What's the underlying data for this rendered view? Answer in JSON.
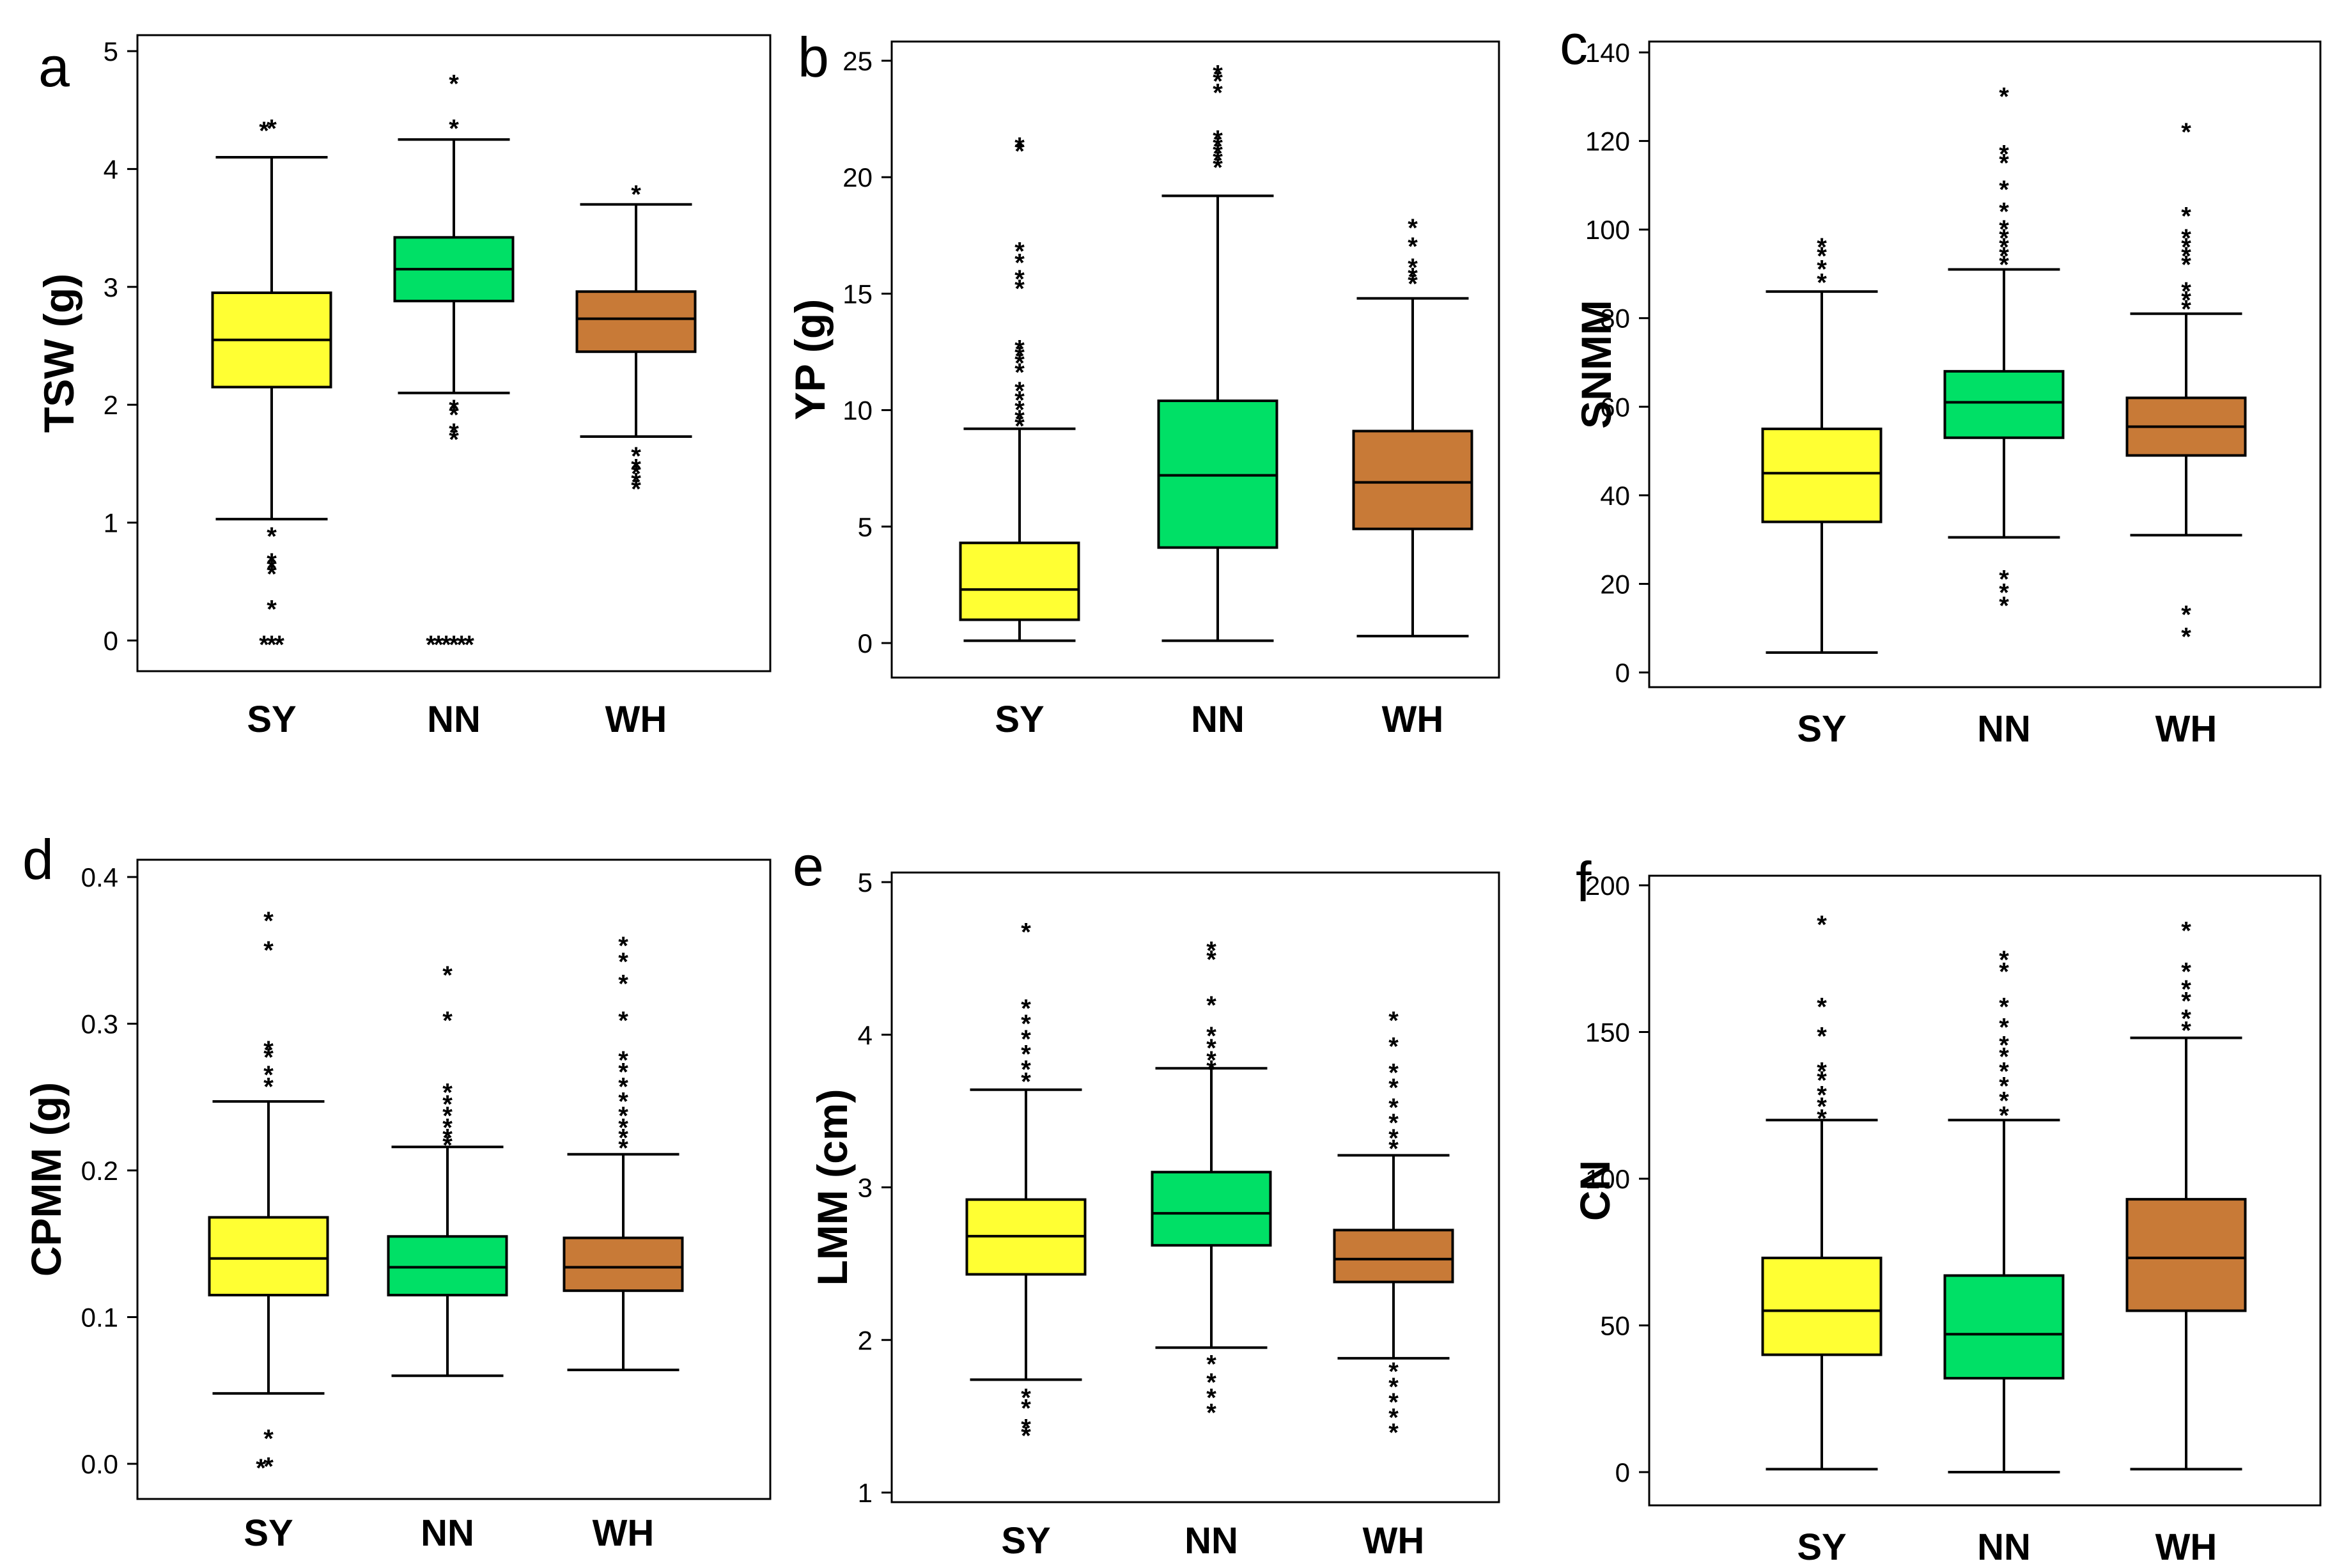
{
  "figure": {
    "domain": "boxplot-panel-grid"
  },
  "chart_data": [
    {
      "type": "boxplot",
      "panel": "a",
      "ylabel": "TSW  (g)",
      "ylim": [
        0,
        5
      ],
      "yticks": [
        0,
        1,
        2,
        3,
        4,
        5
      ],
      "categories": [
        "SY",
        "NN",
        "WH"
      ],
      "series": [
        {
          "name": "SY",
          "color": "#FFFF33",
          "q1": 2.15,
          "median": 2.55,
          "q3": 2.95,
          "whisker_low": 1.03,
          "whisker_high": 4.1,
          "outliers": [
            4.38,
            4.36,
            0.92,
            0.7,
            0.65,
            0.6,
            0.3,
            0.0,
            0.0,
            0.0
          ]
        },
        {
          "name": "NN",
          "color": "#00E066",
          "q1": 2.88,
          "median": 3.15,
          "q3": 3.42,
          "whisker_low": 2.1,
          "whisker_high": 4.25,
          "outliers": [
            4.76,
            4.38,
            2.0,
            1.95,
            1.8,
            1.74,
            0.0,
            0.0,
            0.0,
            0.0,
            0.0,
            0.0
          ]
        },
        {
          "name": "WH",
          "color": "#C87A37",
          "q1": 2.45,
          "median": 2.73,
          "q3": 2.96,
          "whisker_low": 1.73,
          "whisker_high": 3.7,
          "outliers": [
            3.82,
            1.6,
            1.5,
            1.45,
            1.38,
            1.32
          ]
        }
      ]
    },
    {
      "type": "boxplot",
      "panel": "b",
      "ylabel": "YP  (g)",
      "ylim": [
        0,
        25
      ],
      "yticks": [
        0,
        5,
        10,
        15,
        20,
        25
      ],
      "categories": [
        "SY",
        "NN",
        "WH"
      ],
      "series": [
        {
          "name": "SY",
          "color": "#FFFF33",
          "q1": 1.0,
          "median": 2.3,
          "q3": 4.3,
          "whisker_low": 0.1,
          "whisker_high": 9.2,
          "outliers": [
            21.5,
            21.3,
            17.0,
            16.5,
            15.8,
            15.4,
            12.8,
            12.5,
            12.2,
            11.8,
            11.0,
            10.6,
            10.2,
            9.8,
            9.5
          ]
        },
        {
          "name": "NN",
          "color": "#00E066",
          "q1": 4.1,
          "median": 7.2,
          "q3": 10.4,
          "whisker_low": 0.1,
          "whisker_high": 19.2,
          "outliers": [
            24.6,
            24.3,
            23.8,
            21.8,
            21.5,
            21.2,
            20.9,
            20.6
          ]
        },
        {
          "name": "WH",
          "color": "#C87A37",
          "q1": 4.9,
          "median": 6.9,
          "q3": 9.1,
          "whisker_low": 0.3,
          "whisker_high": 14.8,
          "outliers": [
            18.0,
            17.2,
            16.3,
            15.9,
            15.6
          ]
        }
      ]
    },
    {
      "type": "boxplot",
      "panel": "c",
      "ylabel": "SNMM",
      "ylim": [
        0,
        140
      ],
      "yticks": [
        0,
        20,
        40,
        60,
        80,
        100,
        120,
        140
      ],
      "categories": [
        "SY",
        "NN",
        "WH"
      ],
      "series": [
        {
          "name": "SY",
          "color": "#FFFF33",
          "q1": 34,
          "median": 45,
          "q3": 55,
          "whisker_low": 4.5,
          "whisker_high": 86,
          "outliers": [
            97,
            95,
            92,
            89
          ]
        },
        {
          "name": "NN",
          "color": "#00E066",
          "q1": 53,
          "median": 61,
          "q3": 68,
          "whisker_low": 30.5,
          "whisker_high": 91,
          "outliers": [
            131,
            118,
            116,
            110,
            105,
            101,
            99,
            97,
            95,
            93,
            22,
            19,
            16
          ]
        },
        {
          "name": "WH",
          "color": "#C87A37",
          "q1": 49,
          "median": 55.5,
          "q3": 62,
          "whisker_low": 31,
          "whisker_high": 81,
          "outliers": [
            123,
            104,
            99,
            97,
            95,
            93,
            87,
            85,
            83,
            14,
            9
          ]
        }
      ]
    },
    {
      "type": "boxplot",
      "panel": "d",
      "ylabel": "CPMM  (g)",
      "ylim": [
        0.0,
        0.4
      ],
      "yticks": [
        "0.0",
        "0.1",
        "0.2",
        "0.3",
        "0.4"
      ],
      "categories": [
        "SY",
        "NN",
        "WH"
      ],
      "series": [
        {
          "name": "SY",
          "color": "#FFFF33",
          "q1": 0.115,
          "median": 0.14,
          "q3": 0.168,
          "whisker_low": 0.048,
          "whisker_high": 0.247,
          "outliers": [
            0.373,
            0.353,
            0.285,
            0.28,
            0.268,
            0.26,
            0.02,
            0.001,
            0.0
          ]
        },
        {
          "name": "NN",
          "color": "#00E066",
          "q1": 0.115,
          "median": 0.134,
          "q3": 0.155,
          "whisker_low": 0.06,
          "whisker_high": 0.216,
          "outliers": [
            0.336,
            0.305,
            0.256,
            0.248,
            0.24,
            0.232,
            0.225,
            0.22
          ]
        },
        {
          "name": "WH",
          "color": "#C87A37",
          "q1": 0.118,
          "median": 0.134,
          "q3": 0.154,
          "whisker_low": 0.064,
          "whisker_high": 0.211,
          "outliers": [
            0.356,
            0.345,
            0.33,
            0.305,
            0.278,
            0.27,
            0.26,
            0.25,
            0.24,
            0.232,
            0.225,
            0.218
          ]
        }
      ]
    },
    {
      "type": "boxplot",
      "panel": "e",
      "ylabel": "LMM  (cm)",
      "ylim": [
        1,
        5
      ],
      "yticks": [
        1,
        2,
        3,
        4,
        5
      ],
      "categories": [
        "SY",
        "NN",
        "WH"
      ],
      "series": [
        {
          "name": "SY",
          "color": "#FFFF33",
          "q1": 2.43,
          "median": 2.68,
          "q3": 2.92,
          "whisker_low": 1.74,
          "whisker_high": 3.64,
          "outliers": [
            4.7,
            4.2,
            4.1,
            4.0,
            3.9,
            3.8,
            3.72,
            1.65,
            1.58,
            1.45,
            1.4
          ]
        },
        {
          "name": "NN",
          "color": "#00E066",
          "q1": 2.62,
          "median": 2.83,
          "q3": 3.1,
          "whisker_low": 1.95,
          "whisker_high": 3.78,
          "outliers": [
            4.58,
            4.52,
            4.22,
            4.02,
            3.94,
            3.86,
            3.8,
            1.87,
            1.75,
            1.65,
            1.55
          ]
        },
        {
          "name": "WH",
          "color": "#C87A37",
          "q1": 2.38,
          "median": 2.53,
          "q3": 2.72,
          "whisker_low": 1.88,
          "whisker_high": 3.21,
          "outliers": [
            4.12,
            3.95,
            3.78,
            3.68,
            3.55,
            3.45,
            3.35,
            3.28,
            1.82,
            1.72,
            1.62,
            1.52,
            1.42
          ]
        }
      ]
    },
    {
      "type": "boxplot",
      "panel": "f",
      "ylabel": "CN",
      "ylim": [
        0,
        200
      ],
      "yticks": [
        0,
        50,
        100,
        150,
        200
      ],
      "categories": [
        "SY",
        "NN",
        "WH"
      ],
      "series": [
        {
          "name": "SY",
          "color": "#FFFF33",
          "q1": 40,
          "median": 55,
          "q3": 73,
          "whisker_low": 1,
          "whisker_high": 120,
          "outliers": [
            188,
            160,
            150,
            138,
            135,
            130,
            126,
            122
          ]
        },
        {
          "name": "NN",
          "color": "#00E066",
          "q1": 32,
          "median": 47,
          "q3": 67,
          "whisker_low": 0,
          "whisker_high": 120,
          "outliers": [
            176,
            172,
            160,
            153,
            147,
            143,
            138,
            133,
            128,
            123
          ]
        },
        {
          "name": "WH",
          "color": "#C87A37",
          "q1": 55,
          "median": 73,
          "q3": 93,
          "whisker_low": 1,
          "whisker_high": 148,
          "outliers": [
            186,
            172,
            166,
            162,
            156,
            152
          ]
        }
      ]
    }
  ]
}
